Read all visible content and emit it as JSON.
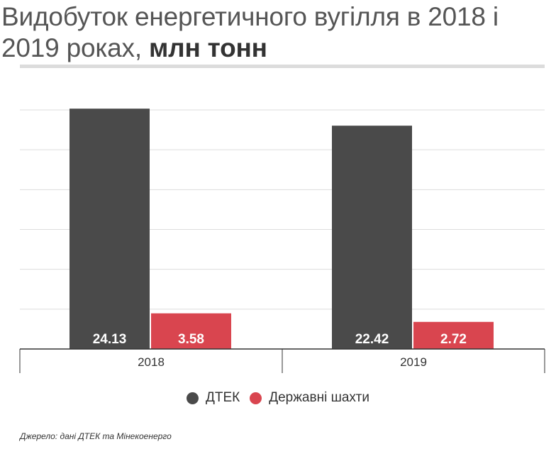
{
  "title": {
    "main": "Видобуток енергетичного вугілля в 2018 і 2019 роках, ",
    "unit": "млн тонн"
  },
  "chart_data": {
    "type": "bar",
    "categories": [
      "2018",
      "2019"
    ],
    "series": [
      {
        "name": "ДТЕК",
        "color": "#4a4a4a",
        "values": [
          24.13,
          22.42
        ]
      },
      {
        "name": "Державні шахти",
        "color": "#d9454f",
        "values": [
          3.58,
          2.72
        ]
      }
    ],
    "ylim": [
      0,
      24
    ],
    "grid": true,
    "legend_position": "bottom"
  },
  "source": "Джерело: дані ДТЕК та Мінекоенерго"
}
